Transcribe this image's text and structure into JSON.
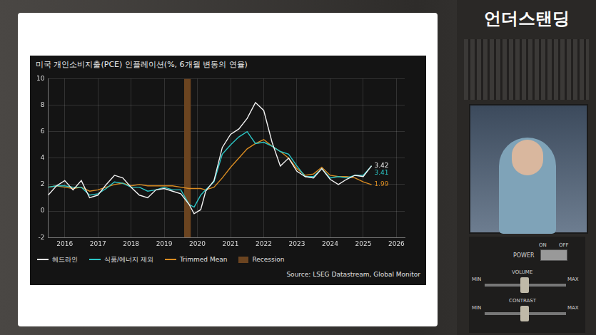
{
  "chart_data": {
    "type": "line",
    "title": "미국 개인소비지출(PCE) 인플레이션(%, 6개월 변동의 연율)",
    "source": "Source: LSEG Datastream, Global Monitor",
    "x": [
      2016,
      2016.25,
      2016.5,
      2016.75,
      2017,
      2017.25,
      2017.5,
      2017.75,
      2018,
      2018.25,
      2018.5,
      2018.75,
      2019,
      2019.25,
      2019.5,
      2019.75,
      2020,
      2020.25,
      2020.4,
      2020.6,
      2020.75,
      2021,
      2021.25,
      2021.5,
      2021.75,
      2022,
      2022.25,
      2022.5,
      2022.75,
      2023,
      2023.25,
      2023.5,
      2023.75,
      2024,
      2024.25,
      2024.5,
      2024.75,
      2025,
      2025.25,
      2025.5,
      2025.75
    ],
    "series": [
      {
        "name": "헤드라인",
        "color": "#f2f2f2",
        "values": [
          1.2,
          1.9,
          2.3,
          1.6,
          2.3,
          1.0,
          1.2,
          2.0,
          2.7,
          2.5,
          1.8,
          1.2,
          1.0,
          1.6,
          1.7,
          1.5,
          1.3,
          0.5,
          -0.2,
          0.1,
          1.5,
          2.3,
          4.8,
          5.8,
          6.2,
          7.0,
          8.2,
          7.6,
          5.2,
          3.4,
          4.0,
          3.0,
          2.6,
          2.5,
          3.2,
          2.4,
          2.0,
          2.4,
          2.7,
          2.6,
          3.42
        ],
        "value_labels": [
          null,
          null,
          null,
          null,
          null,
          null,
          null,
          null,
          null,
          null,
          null,
          null,
          null,
          null,
          null,
          null,
          null,
          null,
          null,
          null,
          null,
          null,
          null,
          null,
          null,
          null,
          null,
          null,
          null,
          null,
          null,
          null,
          null,
          null,
          null,
          null,
          null,
          null,
          null,
          null,
          "3.42"
        ]
      },
      {
        "name": "식품/에너지 제외",
        "color": "#2cc6c6",
        "values": [
          1.8,
          1.9,
          1.9,
          1.8,
          1.8,
          1.2,
          1.3,
          1.7,
          2.2,
          2.1,
          1.8,
          1.8,
          1.5,
          1.6,
          1.8,
          1.6,
          1.6,
          0.5,
          0.3,
          1.2,
          1.6,
          2.2,
          4.3,
          5.0,
          5.6,
          6.0,
          5.1,
          5.2,
          4.9,
          4.5,
          4.3,
          3.4,
          2.6,
          2.6,
          3.2,
          2.5,
          2.6,
          2.5,
          2.7,
          2.7,
          3.41
        ],
        "value_labels": [
          null,
          null,
          null,
          null,
          null,
          null,
          null,
          null,
          null,
          null,
          null,
          null,
          null,
          null,
          null,
          null,
          null,
          null,
          null,
          null,
          null,
          null,
          null,
          null,
          null,
          null,
          null,
          null,
          null,
          null,
          null,
          null,
          null,
          null,
          null,
          null,
          null,
          null,
          null,
          null,
          "3.41"
        ]
      },
      {
        "name": "Trimmed Mean",
        "color": "#d98c22",
        "values": [
          1.8,
          1.9,
          1.8,
          1.7,
          1.8,
          1.5,
          1.6,
          1.8,
          2.0,
          2.1,
          1.9,
          2.0,
          1.9,
          1.9,
          1.9,
          1.9,
          1.8,
          1.7,
          1.7,
          1.7,
          1.6,
          1.8,
          2.5,
          3.3,
          4.0,
          4.7,
          5.1,
          5.4,
          4.9,
          4.5,
          4.0,
          3.2,
          2.7,
          2.8,
          3.3,
          2.7,
          2.6,
          2.6,
          2.5,
          2.2,
          1.99
        ],
        "value_labels": [
          null,
          null,
          null,
          null,
          null,
          null,
          null,
          null,
          null,
          null,
          null,
          null,
          null,
          null,
          null,
          null,
          null,
          null,
          null,
          null,
          null,
          null,
          null,
          null,
          null,
          null,
          null,
          null,
          null,
          null,
          null,
          null,
          null,
          null,
          null,
          null,
          null,
          null,
          null,
          null,
          "1.99"
        ]
      }
    ],
    "shaded": [
      {
        "name": "Recession",
        "color": "#6b4420",
        "from": 2020.1,
        "to": 2020.3
      }
    ],
    "xlim": [
      2016,
      2026.75
    ],
    "xticks": [
      {
        "value": 2016.5,
        "label": "2016"
      },
      {
        "value": 2017.5,
        "label": "2017"
      },
      {
        "value": 2018.5,
        "label": "2018"
      },
      {
        "value": 2019.5,
        "label": "2019"
      },
      {
        "value": 2020.5,
        "label": "2020"
      },
      {
        "value": 2021.5,
        "label": "2021"
      },
      {
        "value": 2022.5,
        "label": "2022"
      },
      {
        "value": 2023.5,
        "label": "2023"
      },
      {
        "value": 2024.5,
        "label": "2024"
      },
      {
        "value": 2025.5,
        "label": "2025"
      },
      {
        "value": 2026.5,
        "label": "2026"
      }
    ],
    "ylim": [
      -2,
      10
    ],
    "yticks": [
      -2,
      0,
      2,
      4,
      6,
      8,
      10
    ],
    "grid": true,
    "legend": "bottom"
  },
  "frame": {
    "channel": "언더스탠딩",
    "power": "POWER",
    "on": "ON",
    "off": "OFF",
    "volume": "VOLUME",
    "contrast": "CONTRAST",
    "min": "MIN",
    "max": "MAX"
  }
}
